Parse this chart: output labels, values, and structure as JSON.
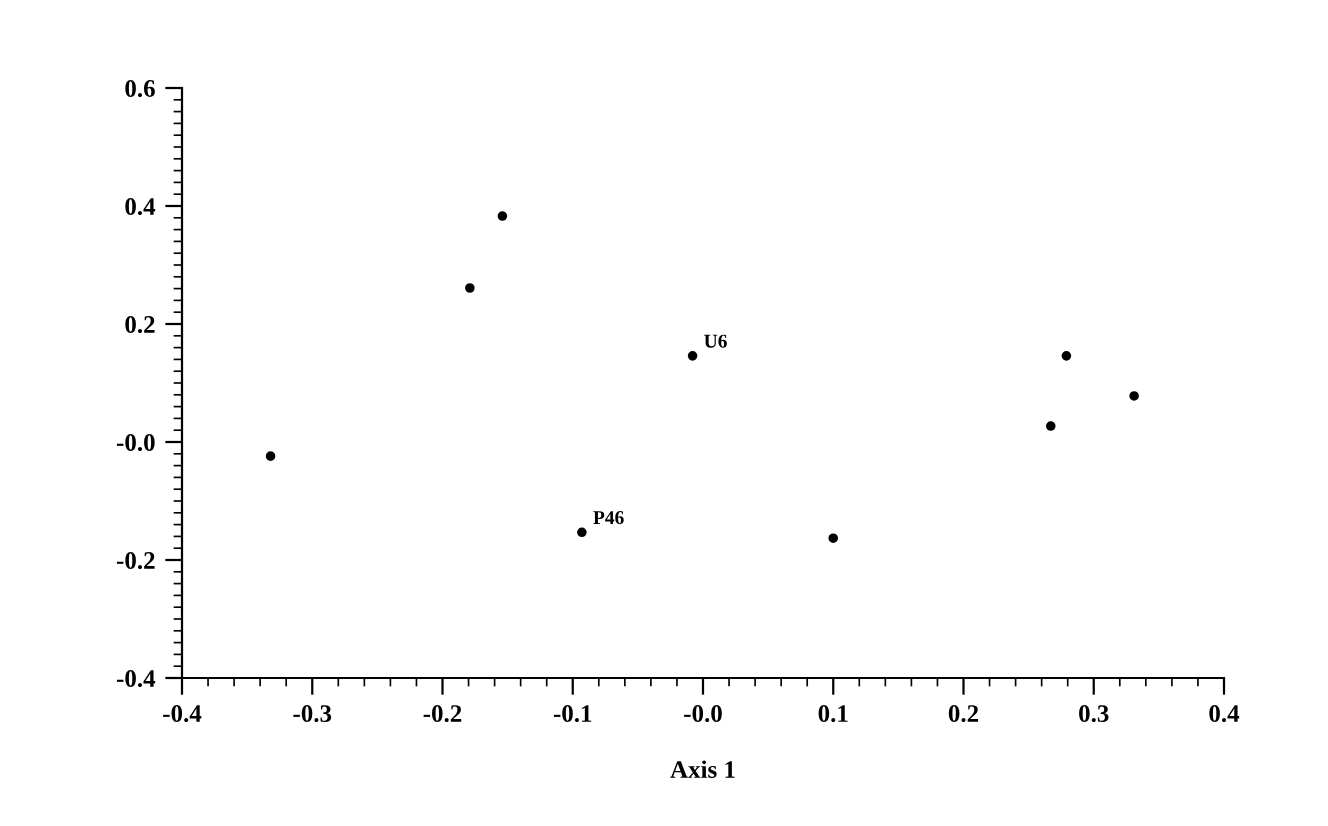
{
  "chart_data": {
    "type": "scatter",
    "xlabel": "Axis 1",
    "x": [
      -0.154,
      -0.179,
      -0.332,
      -0.008,
      -0.093,
      0.1,
      0.279,
      0.331,
      0.267
    ],
    "series": [
      {
        "color": "#000000",
        "values": [
          0.383,
          0.261,
          -0.024,
          0.146,
          -0.153,
          -0.163,
          0.146,
          0.078,
          0.027
        ]
      }
    ],
    "marker": "circle",
    "xlim": [
      -0.4,
      0.4
    ],
    "ylim": [
      -0.4,
      0.6
    ],
    "xticks": [
      -0.4,
      -0.3,
      -0.2,
      -0.1,
      {
        "value": 0,
        "label": "-0.0"
      },
      0.1,
      0.2,
      0.3,
      0.4
    ],
    "yticks": [
      -0.4,
      -0.2,
      {
        "value": 0,
        "label": "-0.0"
      },
      0.2,
      0.4,
      0.6
    ],
    "annotations": [
      {
        "text": "U6",
        "x": -0.008,
        "y": 0.146
      },
      {
        "text": "P46",
        "x": -0.093,
        "y": -0.153
      }
    ],
    "grid": false,
    "legend": false
  }
}
